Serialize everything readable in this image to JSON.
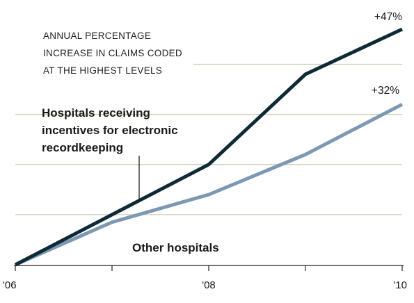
{
  "chart_data": {
    "type": "line",
    "title_lines": [
      "ANNUAL PERCENTAGE",
      "INCREASE IN CLAIMS CODED",
      "AT THE HIGHEST LEVELS"
    ],
    "x": [
      2006,
      2007,
      2008,
      2009,
      2010
    ],
    "x_tick_labels": [
      {
        "x": 2006,
        "label": "'06"
      },
      {
        "x": 2008,
        "label": "'08"
      },
      {
        "x": 2010,
        "label": "'10"
      }
    ],
    "xlim": [
      2006,
      2010
    ],
    "ylim": [
      0,
      47
    ],
    "gridlines_y": [
      10,
      20,
      30,
      40
    ],
    "grid": true,
    "series": [
      {
        "key": "incentives",
        "name_lines": [
          "Hospitals receiving",
          "incentives for electronic",
          "recordkeeping"
        ],
        "values": [
          0,
          10,
          20,
          38,
          47
        ],
        "end_label": "+47%",
        "color": "#0e2a36"
      },
      {
        "key": "other",
        "name_lines": [
          "Other hospitals"
        ],
        "values": [
          0,
          8.5,
          14,
          22,
          32
        ],
        "end_label": "+32%",
        "color": "#7d98b3"
      }
    ],
    "colors": {
      "grid": "#cfcdb8",
      "axis": "#222222",
      "leader": "#111111"
    }
  }
}
